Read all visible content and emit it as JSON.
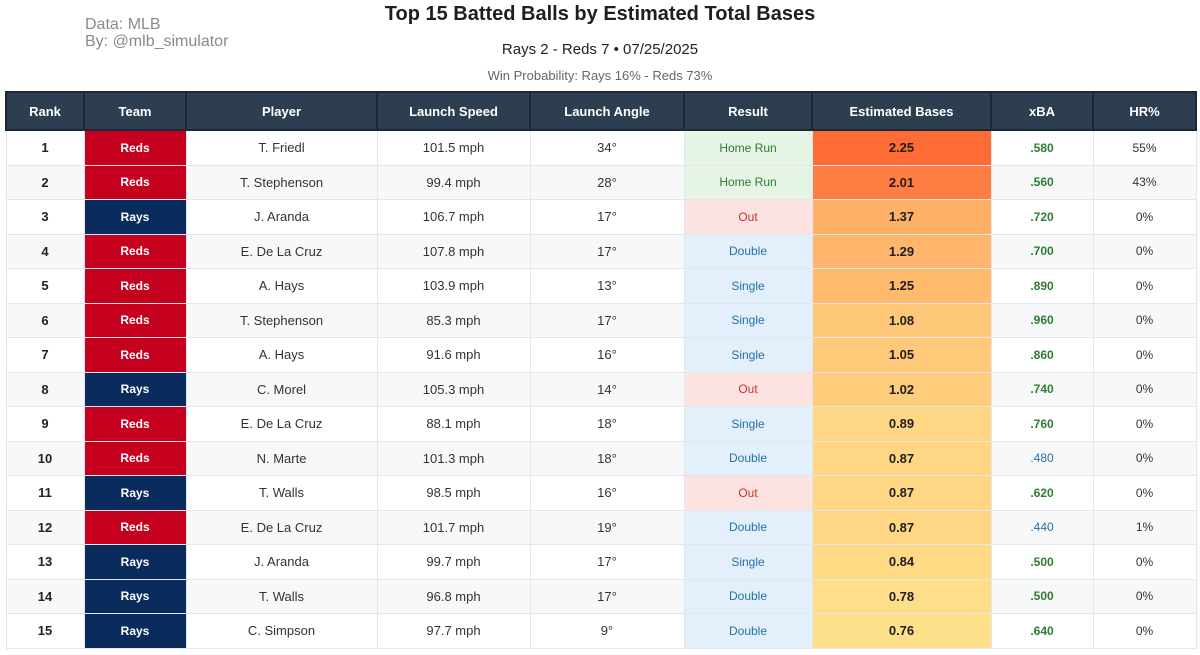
{
  "credits": {
    "line1": "Data: MLB",
    "line2": "By: @mlb_simulator"
  },
  "title": "Top 15 Batted Balls by Estimated Total Bases",
  "subtitle": "Rays 2 - Reds 7  •  07/25/2025",
  "win_probability": "Win Probability: Rays 16% - Reds 73%",
  "colors": {
    "reds": "#c6011f",
    "rays": "#092c5c",
    "header": "#2c3e50",
    "est_high": "#ff6b35",
    "est_low": "#ffe08a"
  },
  "chart_data": {
    "type": "table",
    "title": "Top 15 Batted Balls by Estimated Total Bases",
    "columns": [
      "Rank",
      "Team",
      "Player",
      "Launch Speed",
      "Launch Angle",
      "Result",
      "Estimated Bases",
      "xBA",
      "HR%"
    ],
    "rows": [
      {
        "rank": "1",
        "team": "Reds",
        "player": "T. Friedl",
        "speed": "101.5 mph",
        "angle": "34°",
        "result": "Home Run",
        "est": "2.25",
        "xba": ".580",
        "hr": "55%"
      },
      {
        "rank": "2",
        "team": "Reds",
        "player": "T. Stephenson",
        "speed": "99.4 mph",
        "angle": "28°",
        "result": "Home Run",
        "est": "2.01",
        "xba": ".560",
        "hr": "43%"
      },
      {
        "rank": "3",
        "team": "Rays",
        "player": "J. Aranda",
        "speed": "106.7 mph",
        "angle": "17°",
        "result": "Out",
        "est": "1.37",
        "xba": ".720",
        "hr": "0%"
      },
      {
        "rank": "4",
        "team": "Reds",
        "player": "E. De La Cruz",
        "speed": "107.8 mph",
        "angle": "17°",
        "result": "Double",
        "est": "1.29",
        "xba": ".700",
        "hr": "0%"
      },
      {
        "rank": "5",
        "team": "Reds",
        "player": "A. Hays",
        "speed": "103.9 mph",
        "angle": "13°",
        "result": "Single",
        "est": "1.25",
        "xba": ".890",
        "hr": "0%"
      },
      {
        "rank": "6",
        "team": "Reds",
        "player": "T. Stephenson",
        "speed": "85.3 mph",
        "angle": "17°",
        "result": "Single",
        "est": "1.08",
        "xba": ".960",
        "hr": "0%"
      },
      {
        "rank": "7",
        "team": "Reds",
        "player": "A. Hays",
        "speed": "91.6 mph",
        "angle": "16°",
        "result": "Single",
        "est": "1.05",
        "xba": ".860",
        "hr": "0%"
      },
      {
        "rank": "8",
        "team": "Rays",
        "player": "C. Morel",
        "speed": "105.3 mph",
        "angle": "14°",
        "result": "Out",
        "est": "1.02",
        "xba": ".740",
        "hr": "0%"
      },
      {
        "rank": "9",
        "team": "Reds",
        "player": "E. De La Cruz",
        "speed": "88.1 mph",
        "angle": "18°",
        "result": "Single",
        "est": "0.89",
        "xba": ".760",
        "hr": "0%"
      },
      {
        "rank": "10",
        "team": "Reds",
        "player": "N. Marte",
        "speed": "101.3 mph",
        "angle": "18°",
        "result": "Double",
        "est": "0.87",
        "xba": ".480",
        "hr": "0%"
      },
      {
        "rank": "11",
        "team": "Rays",
        "player": "T. Walls",
        "speed": "98.5 mph",
        "angle": "16°",
        "result": "Out",
        "est": "0.87",
        "xba": ".620",
        "hr": "0%"
      },
      {
        "rank": "12",
        "team": "Reds",
        "player": "E. De La Cruz",
        "speed": "101.7 mph",
        "angle": "19°",
        "result": "Double",
        "est": "0.87",
        "xba": ".440",
        "hr": "1%"
      },
      {
        "rank": "13",
        "team": "Rays",
        "player": "J. Aranda",
        "speed": "99.7 mph",
        "angle": "17°",
        "result": "Single",
        "est": "0.84",
        "xba": ".500",
        "hr": "0%"
      },
      {
        "rank": "14",
        "team": "Rays",
        "player": "T. Walls",
        "speed": "96.8 mph",
        "angle": "17°",
        "result": "Double",
        "est": "0.78",
        "xba": ".500",
        "hr": "0%"
      },
      {
        "rank": "15",
        "team": "Rays",
        "player": "C. Simpson",
        "speed": "97.7 mph",
        "angle": "9°",
        "result": "Double",
        "est": "0.76",
        "xba": ".640",
        "hr": "0%"
      }
    ]
  }
}
